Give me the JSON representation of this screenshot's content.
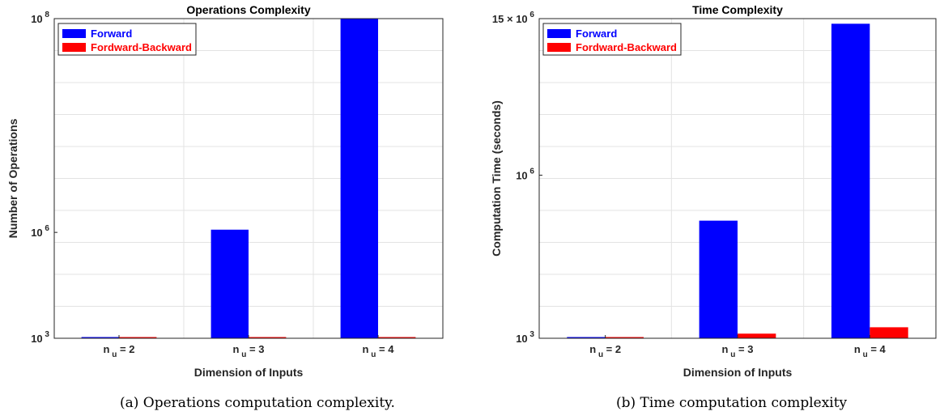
{
  "chart_data": [
    {
      "type": "bar",
      "title": "Operations Complexity",
      "xlabel": "Dimension of Inputs",
      "ylabel": "Number of Operations",
      "categories": [
        {
          "base": "n",
          "sub": "u",
          "rest": " = 2"
        },
        {
          "base": "n",
          "sub": "u",
          "rest": " = 3"
        },
        {
          "base": "n",
          "sub": "u",
          "rest": " = 4"
        }
      ],
      "series": [
        {
          "name": "Forward",
          "color": "#0000ff",
          "values": [
            1050,
            1100000,
            100000000
          ]
        },
        {
          "name": "Fordward-Backward",
          "color": "#ff0000",
          "values": [
            1000,
            1000,
            1010
          ]
        }
      ],
      "yscale": "power-0.2",
      "ylim": [
        1000,
        100000000
      ],
      "yticks": [
        {
          "value": 1000,
          "base": "10",
          "exp": "3",
          "mult": ""
        },
        {
          "value": 1000000,
          "base": "10",
          "exp": "6",
          "mult": ""
        },
        {
          "value": 100000000,
          "base": "10",
          "exp": "8",
          "mult": ""
        }
      ],
      "grid": true,
      "legend": "top-left",
      "caption": "(a) Operations computation complexity."
    },
    {
      "type": "bar",
      "title": "Time Complexity",
      "xlabel": "Dimension of Inputs",
      "ylabel": "Computation Time (seconds)",
      "categories": [
        {
          "base": "n",
          "sub": "u",
          "rest": " = 2"
        },
        {
          "base": "n",
          "sub": "u",
          "rest": " = 3"
        },
        {
          "base": "n",
          "sub": "u",
          "rest": " = 4"
        }
      ],
      "series": [
        {
          "name": "Forward",
          "color": "#0000ff",
          "values": [
            1100,
            310000,
            14000000
          ]
        },
        {
          "name": "Fordward-Backward",
          "color": "#ff0000",
          "values": [
            1000,
            1500,
            2500
          ]
        }
      ],
      "yscale": "power-0.2",
      "ylim": [
        1000,
        15000000
      ],
      "yticks": [
        {
          "value": 1000,
          "base": "10",
          "exp": "3",
          "mult": ""
        },
        {
          "value": 1000000,
          "base": "10",
          "exp": "6",
          "mult": ""
        },
        {
          "value": 15000000,
          "base": "10",
          "exp": "6",
          "mult": "15 × "
        }
      ],
      "grid": true,
      "legend": "top-left",
      "caption": "(b) Time computation complexity"
    }
  ]
}
